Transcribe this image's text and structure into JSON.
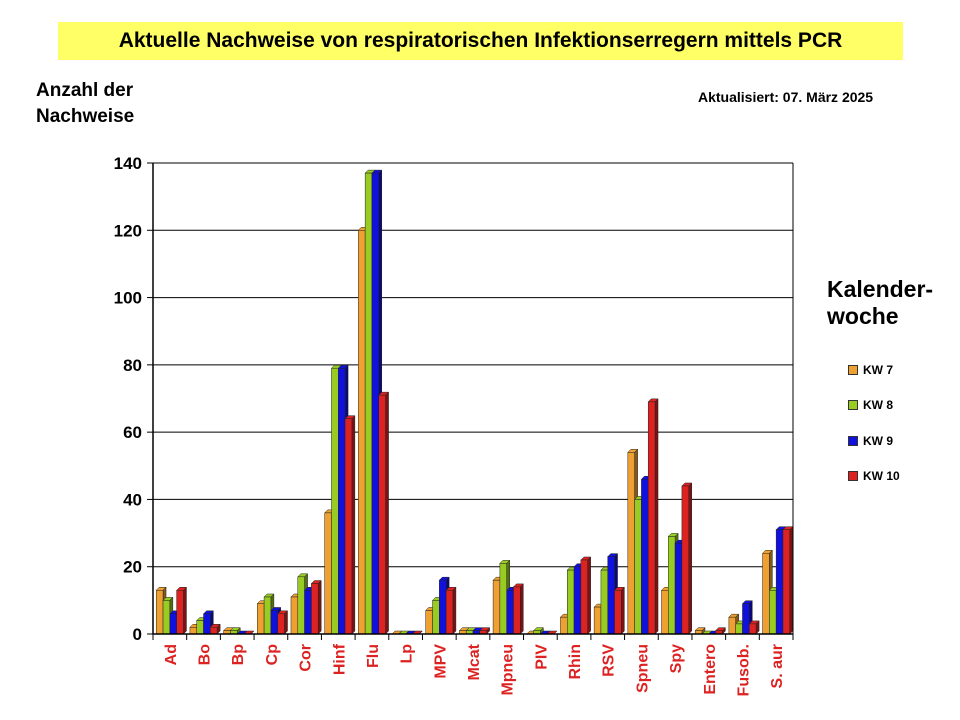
{
  "header": {
    "title": "Aktuelle Nachweise von respiratorischen Infektionserregern mittels PCR",
    "updated": "Aktualisiert:  07. März 2025"
  },
  "chart_data": {
    "type": "bar",
    "ylabel": [
      "Anzahl der",
      "Nachweise"
    ],
    "ylim": [
      0,
      140
    ],
    "yticks": [
      0,
      20,
      40,
      60,
      80,
      100,
      120,
      140
    ],
    "grid": true,
    "legend_title": [
      "Kalender-",
      "woche"
    ],
    "legend_position": "right",
    "categories": [
      "Ad",
      "Bo",
      "Bp",
      "Cp",
      "Cor",
      "Hinf",
      "Flu",
      "Lp",
      "MPV",
      "Mcat",
      "Mpneu",
      "PIV",
      "Rhin",
      "RSV",
      "Spneu",
      "Spy",
      "Entero",
      "Fusob.",
      "S. aur"
    ],
    "series": [
      {
        "name": "KW 7",
        "color": "#f0a030",
        "values": [
          13,
          2,
          1,
          9,
          11,
          36,
          120,
          0,
          7,
          1,
          16,
          0,
          5,
          8,
          54,
          13,
          1,
          5,
          24
        ]
      },
      {
        "name": "KW 8",
        "color": "#99cc22",
        "values": [
          10,
          4,
          1,
          11,
          17,
          79,
          137,
          0,
          10,
          1,
          21,
          1,
          19,
          19,
          40,
          29,
          0,
          3,
          13
        ]
      },
      {
        "name": "KW 9",
        "color": "#1111dd",
        "values": [
          6,
          6,
          0,
          7,
          13,
          79,
          137,
          0,
          16,
          1,
          13,
          0,
          20,
          23,
          46,
          27,
          0,
          9,
          31
        ]
      },
      {
        "name": "KW 10",
        "color": "#dd2222",
        "values": [
          13,
          2,
          0,
          6,
          15,
          64,
          71,
          0,
          13,
          1,
          14,
          0,
          22,
          13,
          69,
          44,
          1,
          3,
          31
        ]
      }
    ]
  }
}
